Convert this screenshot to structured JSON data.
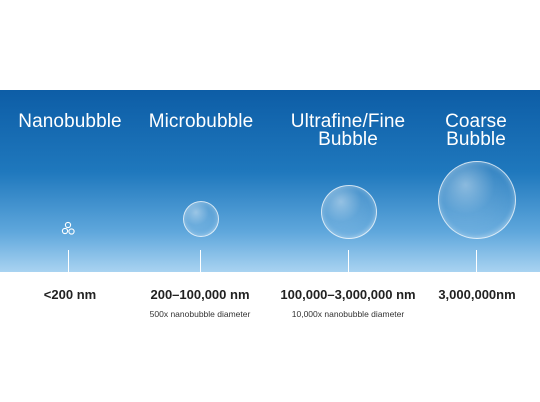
{
  "categories": [
    {
      "id": "nano",
      "lines": [
        "Nanobubble"
      ],
      "range": "<200 nm",
      "note": ""
    },
    {
      "id": "micro",
      "lines": [
        "Microbubble"
      ],
      "range": "200–100,000 nm",
      "note": "500x nanobubble diameter"
    },
    {
      "id": "fine",
      "lines": [
        "Ultrafine/Fine",
        "Bubble"
      ],
      "range": "100,000–3,000,000 nm",
      "note": "10,000x nanobubble diameter"
    },
    {
      "id": "coarse",
      "lines": [
        "Coarse",
        "Bubble"
      ],
      "range": "3,000,000nm",
      "note": ""
    }
  ],
  "colors": {
    "panel_top": "#0d5da6",
    "panel_bottom": "#a9d3f1",
    "label_text": "#ffffff",
    "range_text": "#222222"
  },
  "icons": {
    "nano": "nanobubble-cluster-icon"
  }
}
